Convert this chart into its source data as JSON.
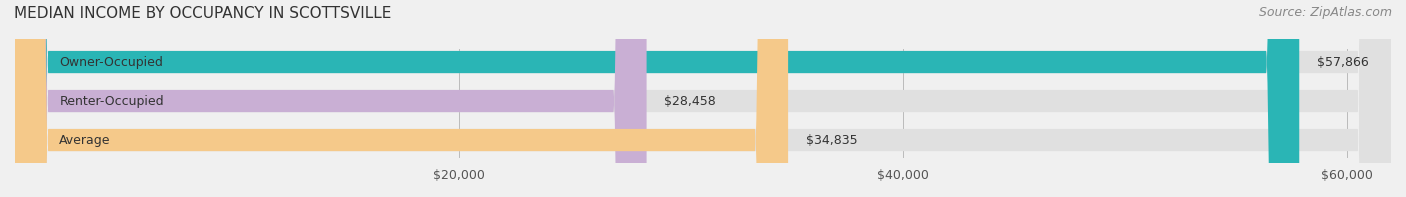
{
  "title": "MEDIAN INCOME BY OCCUPANCY IN SCOTTSVILLE",
  "source": "Source: ZipAtlas.com",
  "categories": [
    "Owner-Occupied",
    "Renter-Occupied",
    "Average"
  ],
  "values": [
    57866,
    28458,
    34835
  ],
  "labels": [
    "$57,866",
    "$28,458",
    "$34,835"
  ],
  "bar_colors": [
    "#2ab5b5",
    "#c9afd4",
    "#f5c98a"
  ],
  "bar_edge_colors": [
    "#2ab5b5",
    "#c9afd4",
    "#f5c98a"
  ],
  "background_color": "#f0f0f0",
  "bar_bg_color": "#e8e8e8",
  "xlim": [
    0,
    62000
  ],
  "xticks": [
    0,
    20000,
    40000,
    60000
  ],
  "xticklabels": [
    "",
    "$20,000",
    "$40,000",
    "$60,000"
  ],
  "title_fontsize": 11,
  "source_fontsize": 9,
  "label_fontsize": 9,
  "tick_fontsize": 9,
  "bar_height": 0.55,
  "fig_width": 14.06,
  "fig_height": 1.97
}
